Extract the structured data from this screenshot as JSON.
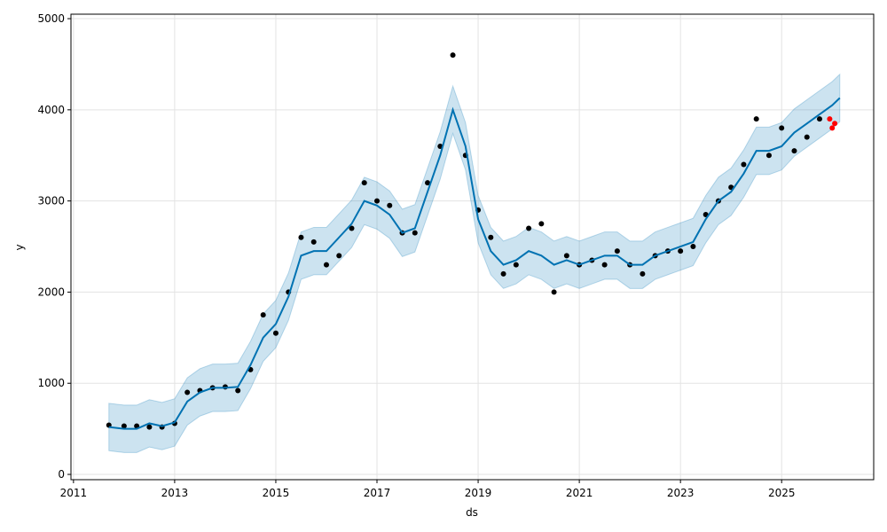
{
  "chart_data": {
    "type": "line",
    "x_label": "ds",
    "y_label": "y",
    "xlim": [
      2010.95,
      2026.82
    ],
    "ylim": [
      -58,
      5049
    ],
    "xticks": [
      2011,
      2013,
      2015,
      2017,
      2019,
      2021,
      2023,
      2025
    ],
    "yticks": [
      0,
      1000,
      2000,
      3000,
      4000,
      5000
    ],
    "grid": true,
    "series": [
      {
        "type": "band",
        "color": "#0072b2",
        "x": [
          2011.7,
          2012.0,
          2012.25,
          2012.5,
          2012.75,
          2013.0,
          2013.25,
          2013.5,
          2013.75,
          2014.0,
          2014.25,
          2014.5,
          2014.75,
          2015.0,
          2015.25,
          2015.5,
          2015.75,
          2016.0,
          2016.25,
          2016.5,
          2016.75,
          2017.0,
          2017.25,
          2017.5,
          2017.75,
          2018.0,
          2018.25,
          2018.5,
          2018.75,
          2019.0,
          2019.25,
          2019.5,
          2019.75,
          2020.0,
          2020.25,
          2020.5,
          2020.75,
          2021.0,
          2021.25,
          2021.5,
          2021.75,
          2022.0,
          2022.25,
          2022.5,
          2022.75,
          2023.0,
          2023.25,
          2023.5,
          2023.75,
          2024.0,
          2024.25,
          2024.5,
          2024.75,
          2025.0,
          2025.25,
          2025.5,
          2025.75,
          2026.0,
          2026.15
        ],
        "lower": [
          260,
          240,
          240,
          300,
          270,
          310,
          540,
          640,
          690,
          690,
          700,
          940,
          1240,
          1390,
          1690,
          2140,
          2190,
          2190,
          2340,
          2490,
          2740,
          2690,
          2590,
          2390,
          2440,
          2840,
          3240,
          3740,
          3340,
          2540,
          2190,
          2040,
          2090,
          2190,
          2140,
          2040,
          2090,
          2040,
          2090,
          2140,
          2140,
          2040,
          2040,
          2140,
          2190,
          2240,
          2290,
          2540,
          2740,
          2840,
          3040,
          3290,
          3290,
          3340,
          3490,
          3590,
          3690,
          3790,
          3870
        ],
        "upper": [
          780,
          760,
          760,
          820,
          790,
          830,
          1060,
          1160,
          1210,
          1210,
          1220,
          1460,
          1760,
          1910,
          2210,
          2660,
          2710,
          2710,
          2860,
          3010,
          3260,
          3210,
          3110,
          2910,
          2960,
          3360,
          3760,
          4260,
          3860,
          3060,
          2710,
          2560,
          2610,
          2710,
          2660,
          2560,
          2610,
          2560,
          2610,
          2660,
          2660,
          2560,
          2560,
          2660,
          2710,
          2760,
          2810,
          3060,
          3260,
          3360,
          3560,
          3810,
          3810,
          3860,
          4010,
          4110,
          4210,
          4310,
          4390
        ]
      },
      {
        "type": "scatter",
        "color": "#000000",
        "x": [
          2011.7,
          2012.0,
          2012.25,
          2012.5,
          2012.75,
          2013.0,
          2013.25,
          2013.5,
          2013.75,
          2014.0,
          2014.25,
          2014.5,
          2014.75,
          2015.0,
          2015.25,
          2015.5,
          2015.75,
          2016.0,
          2016.25,
          2016.5,
          2016.75,
          2017.0,
          2017.25,
          2017.5,
          2017.75,
          2018.0,
          2018.25,
          2018.5,
          2018.75,
          2019.0,
          2019.25,
          2019.5,
          2019.75,
          2020.0,
          2020.25,
          2020.5,
          2020.75,
          2021.0,
          2021.25,
          2021.5,
          2021.75,
          2022.0,
          2022.25,
          2022.5,
          2022.75,
          2023.0,
          2023.25,
          2023.5,
          2023.75,
          2024.0,
          2024.25,
          2024.5,
          2024.75,
          2025.0,
          2025.25,
          2025.5,
          2025.75
        ],
        "values": [
          540,
          530,
          530,
          520,
          520,
          560,
          900,
          920,
          950,
          960,
          920,
          1150,
          1750,
          1550,
          2000,
          2600,
          2550,
          2300,
          2400,
          2700,
          3200,
          3000,
          2950,
          2650,
          2650,
          3200,
          3600,
          4600,
          3500,
          2900,
          2600,
          2200,
          2300,
          2700,
          2750,
          2000,
          2400,
          2300,
          2350,
          2300,
          2450,
          2300,
          2200,
          2400,
          2450,
          2450,
          2500,
          2850,
          3000,
          3150,
          3400,
          3900,
          3500,
          3800,
          3550,
          3700,
          3900
        ]
      },
      {
        "type": "scatter",
        "color": "#ff0000",
        "x": [
          2025.95,
          2026.0,
          2026.05
        ],
        "values": [
          3900,
          3800,
          3850
        ]
      },
      {
        "type": "line",
        "color": "#0072b2",
        "x": [
          2011.7,
          2012.0,
          2012.25,
          2012.5,
          2012.75,
          2013.0,
          2013.25,
          2013.5,
          2013.75,
          2014.0,
          2014.25,
          2014.5,
          2014.75,
          2015.0,
          2015.25,
          2015.5,
          2015.75,
          2016.0,
          2016.25,
          2016.5,
          2016.75,
          2017.0,
          2017.25,
          2017.5,
          2017.75,
          2018.0,
          2018.25,
          2018.5,
          2018.75,
          2019.0,
          2019.25,
          2019.5,
          2019.75,
          2020.0,
          2020.25,
          2020.5,
          2020.75,
          2021.0,
          2021.25,
          2021.5,
          2021.75,
          2022.0,
          2022.25,
          2022.5,
          2022.75,
          2023.0,
          2023.25,
          2023.5,
          2023.75,
          2024.0,
          2024.25,
          2024.5,
          2024.75,
          2025.0,
          2025.25,
          2025.5,
          2025.75,
          2026.0,
          2026.15
        ],
        "values": [
          520,
          500,
          500,
          560,
          530,
          570,
          800,
          900,
          950,
          950,
          960,
          1200,
          1500,
          1650,
          1950,
          2400,
          2450,
          2450,
          2600,
          2750,
          3000,
          2950,
          2850,
          2650,
          2700,
          3100,
          3500,
          4000,
          3600,
          2800,
          2450,
          2300,
          2350,
          2450,
          2400,
          2300,
          2350,
          2300,
          2350,
          2400,
          2400,
          2300,
          2300,
          2400,
          2450,
          2500,
          2550,
          2800,
          3000,
          3100,
          3300,
          3550,
          3550,
          3600,
          3750,
          3850,
          3950,
          4050,
          4130
        ]
      }
    ]
  }
}
